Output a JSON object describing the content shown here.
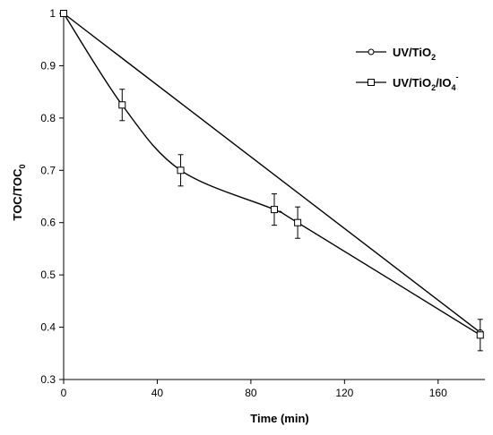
{
  "chart_data": {
    "type": "line",
    "xlabel": "Time (min)",
    "ylabel_main": "TOC/TOC",
    "ylabel_sub": "0",
    "xlim": [
      0,
      180
    ],
    "ylim": [
      0.3,
      1.0
    ],
    "x_ticks": [
      "0",
      "40",
      "80",
      "120",
      "160"
    ],
    "x_tick_values": [
      0,
      40,
      80,
      120,
      160
    ],
    "y_ticks": [
      "0.3",
      "0.4",
      "0.5",
      "0.6",
      "0.7",
      "0.8",
      "0.9",
      "1"
    ],
    "y_tick_values": [
      0.3,
      0.4,
      0.5,
      0.6,
      0.7,
      0.8,
      0.9,
      1.0
    ],
    "grid": false,
    "legend_position": "top-right",
    "series": [
      {
        "legend_parts": [
          "UV/TiO",
          "2",
          "",
          "",
          ""
        ],
        "marker": "circle",
        "x": [
          0,
          178
        ],
        "y": [
          1.0,
          0.39
        ]
      },
      {
        "legend_parts": [
          "UV/TiO",
          "2",
          "/IO",
          "4",
          "-"
        ],
        "marker": "square",
        "x": [
          0,
          25,
          50,
          90,
          100,
          178
        ],
        "y": [
          1.0,
          0.825,
          0.7,
          0.625,
          0.6,
          0.385
        ],
        "error": [
          0,
          0.03,
          0.03,
          0.03,
          0.03,
          0.03
        ]
      }
    ]
  }
}
